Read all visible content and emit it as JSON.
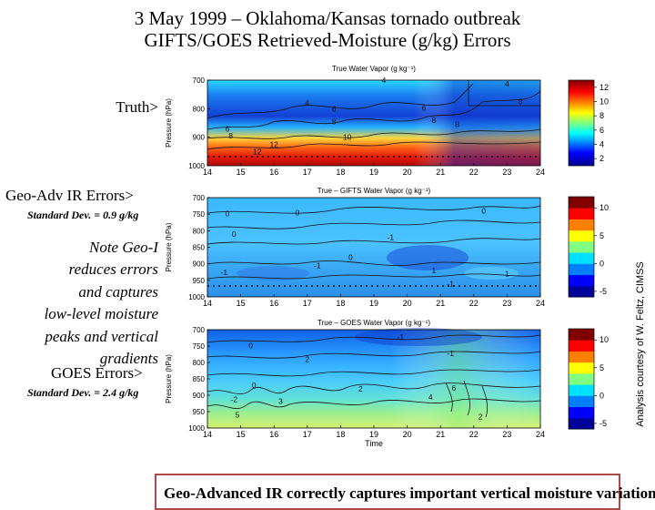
{
  "title": {
    "line1": "3 May 1999 – Oklahoma/Kansas tornado outbreak",
    "line2": "GIFTS/GOES Retrieved-Moisture (g/kg) Errors"
  },
  "labels": {
    "truth": "Truth>",
    "geo_adv": "Geo-Adv IR Errors>",
    "geo_std": "Standard Dev. = 0.9 g/kg",
    "goes": "GOES Errors>",
    "goes_std": "Standard Dev. = 2.4 g/kg"
  },
  "note": [
    "Note Geo-I",
    "reduces errors",
    "and captures",
    "low-level moisture",
    "peaks and vertical",
    "gradients"
  ],
  "credit": "Analysis courtesy of W. Feltz, CIMSS",
  "bottom_text": "Geo-Advanced IR correctly captures important vertical moisture variations",
  "colors": {
    "border": "#b04848",
    "contour": "#111111"
  },
  "chart_data": [
    {
      "type": "heatmap",
      "title": "True Water Vapor (g kg⁻¹)",
      "ylabel": "Pressure (hPa)",
      "xlabel": "",
      "x_ticks": [
        14,
        15,
        16,
        17,
        18,
        19,
        20,
        21,
        22,
        23,
        24
      ],
      "y_ticks": [
        700,
        800,
        900,
        1000
      ],
      "xlim": [
        14,
        24
      ],
      "ylim": [
        700,
        1000
      ],
      "colorbar": {
        "ticks": [
          12,
          10,
          8,
          6,
          4,
          2
        ],
        "range": [
          1,
          13
        ]
      },
      "contour_labels": [
        {
          "text": "4",
          "x": 17.0,
          "y": 780
        },
        {
          "text": "4",
          "x": 19.3,
          "y": 700
        },
        {
          "text": "4",
          "x": 23.0,
          "y": 712
        },
        {
          "text": "6",
          "x": 17.8,
          "y": 800
        },
        {
          "text": "6",
          "x": 20.5,
          "y": 798
        },
        {
          "text": "8",
          "x": 23.4,
          "y": 775
        },
        {
          "text": "8",
          "x": 17.8,
          "y": 845
        },
        {
          "text": "8",
          "x": 20.8,
          "y": 840
        },
        {
          "text": "6",
          "x": 14.6,
          "y": 870
        },
        {
          "text": "8",
          "x": 14.7,
          "y": 895
        },
        {
          "text": "10",
          "x": 18.2,
          "y": 900
        },
        {
          "text": "8",
          "x": 21.5,
          "y": 855
        },
        {
          "text": "12",
          "x": 16.0,
          "y": 925
        },
        {
          "text": "12",
          "x": 15.5,
          "y": 950
        }
      ]
    },
    {
      "type": "heatmap",
      "title": "True – GIFTS Water Vapor (g kg⁻¹)",
      "ylabel": "Pressure (hPa)",
      "xlabel": "",
      "x_ticks": [
        14,
        15,
        16,
        17,
        18,
        19,
        20,
        21,
        22,
        23,
        24
      ],
      "y_ticks": [
        700,
        750,
        800,
        850,
        900,
        950,
        1000
      ],
      "xlim": [
        14,
        24
      ],
      "ylim": [
        700,
        1000
      ],
      "colorbar": {
        "ticks": [
          10,
          5,
          0,
          -5
        ],
        "range": [
          -6,
          12
        ]
      },
      "contour_labels": [
        {
          "text": "0",
          "x": 14.6,
          "y": 748
        },
        {
          "text": "0",
          "x": 16.7,
          "y": 745
        },
        {
          "text": "0",
          "x": 22.3,
          "y": 740
        },
        {
          "text": "0",
          "x": 14.8,
          "y": 810
        },
        {
          "text": "-1",
          "x": 19.5,
          "y": 820
        },
        {
          "text": "0",
          "x": 18.3,
          "y": 880
        },
        {
          "text": "1",
          "x": 20.8,
          "y": 920
        },
        {
          "text": "-1",
          "x": 17.3,
          "y": 905
        },
        {
          "text": "-1",
          "x": 14.5,
          "y": 925
        },
        {
          "text": "1",
          "x": 23.0,
          "y": 930
        },
        {
          "text": "-1",
          "x": 21.3,
          "y": 960
        }
      ]
    },
    {
      "type": "heatmap",
      "title": "True – GOES Water Vapor (g kg⁻¹)",
      "ylabel": "Pressure (hPa)",
      "xlabel": "Time",
      "x_ticks": [
        14,
        15,
        16,
        17,
        18,
        19,
        20,
        21,
        22,
        23,
        24
      ],
      "y_ticks": [
        700,
        750,
        800,
        850,
        900,
        950,
        1000
      ],
      "xlim": [
        14,
        24
      ],
      "ylim": [
        700,
        1000
      ],
      "colorbar": {
        "ticks": [
          10,
          5,
          0,
          -5
        ],
        "range": [
          -6,
          12
        ]
      },
      "contour_labels": [
        {
          "text": "0",
          "x": 15.3,
          "y": 748
        },
        {
          "text": "-1",
          "x": 19.8,
          "y": 722
        },
        {
          "text": "-1",
          "x": 21.3,
          "y": 772
        },
        {
          "text": "2",
          "x": 17.0,
          "y": 790
        },
        {
          "text": "0",
          "x": 15.4,
          "y": 870
        },
        {
          "text": "2",
          "x": 18.6,
          "y": 880
        },
        {
          "text": "6",
          "x": 21.4,
          "y": 878
        },
        {
          "text": "-2",
          "x": 14.8,
          "y": 912
        },
        {
          "text": "3",
          "x": 16.2,
          "y": 918
        },
        {
          "text": "4",
          "x": 20.7,
          "y": 905
        },
        {
          "text": "5",
          "x": 14.9,
          "y": 960
        },
        {
          "text": "2",
          "x": 22.2,
          "y": 965
        }
      ]
    }
  ]
}
